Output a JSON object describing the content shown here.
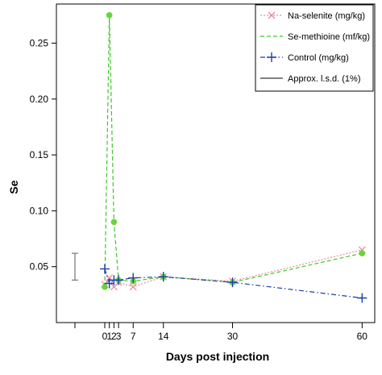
{
  "chart_data": {
    "type": "line",
    "xlabel": "Days post injection",
    "ylabel": "Se",
    "xlim": [
      -8,
      62
    ],
    "ylim": [
      0.0,
      0.285
    ],
    "x_ticks": [
      0,
      1,
      2,
      3,
      7,
      14,
      30,
      60
    ],
    "x_tick_labels": [
      "0",
      "1",
      "2",
      "3",
      "7",
      "14",
      "30",
      "60"
    ],
    "y_ticks": [
      0.05,
      0.1,
      0.15,
      0.2,
      0.25
    ],
    "y_tick_labels": [
      "0.05",
      "0.10",
      "0.15",
      "0.20",
      "0.25"
    ],
    "grid": false,
    "legend_position": "top-right",
    "series": [
      {
        "name": "Na-selenite (mg/kg)",
        "color": "#e88a9a",
        "marker": "x",
        "line_style": "dotted",
        "x": [
          0,
          1,
          2,
          3,
          7,
          14,
          30,
          60
        ],
        "y": [
          0.034,
          0.04,
          0.032,
          0.036,
          0.032,
          0.041,
          0.037,
          0.065
        ]
      },
      {
        "name": "Se-methioine (mf/kg)",
        "color": "#3fc62a",
        "marker": "filled-circle",
        "marker_color": "#66d63a",
        "line_style": "dashed",
        "x": [
          0,
          1,
          2,
          3,
          7,
          14,
          30,
          60
        ],
        "y": [
          0.032,
          0.275,
          0.09,
          0.038,
          0.037,
          0.041,
          0.036,
          0.062
        ]
      },
      {
        "name": "Control (mg/kg)",
        "color": "#1c3ea8",
        "marker": "plus",
        "line_style": "dash-dot",
        "x": [
          0,
          1,
          2,
          3,
          7,
          14,
          30,
          60
        ],
        "y": [
          0.048,
          0.035,
          0.038,
          0.038,
          0.04,
          0.041,
          0.036,
          0.022
        ]
      }
    ],
    "lsd": {
      "name": "Approx. l.s.d. (1%)",
      "color": "#808080",
      "x": -5,
      "y_low": 0.038,
      "y_high": 0.062
    }
  }
}
